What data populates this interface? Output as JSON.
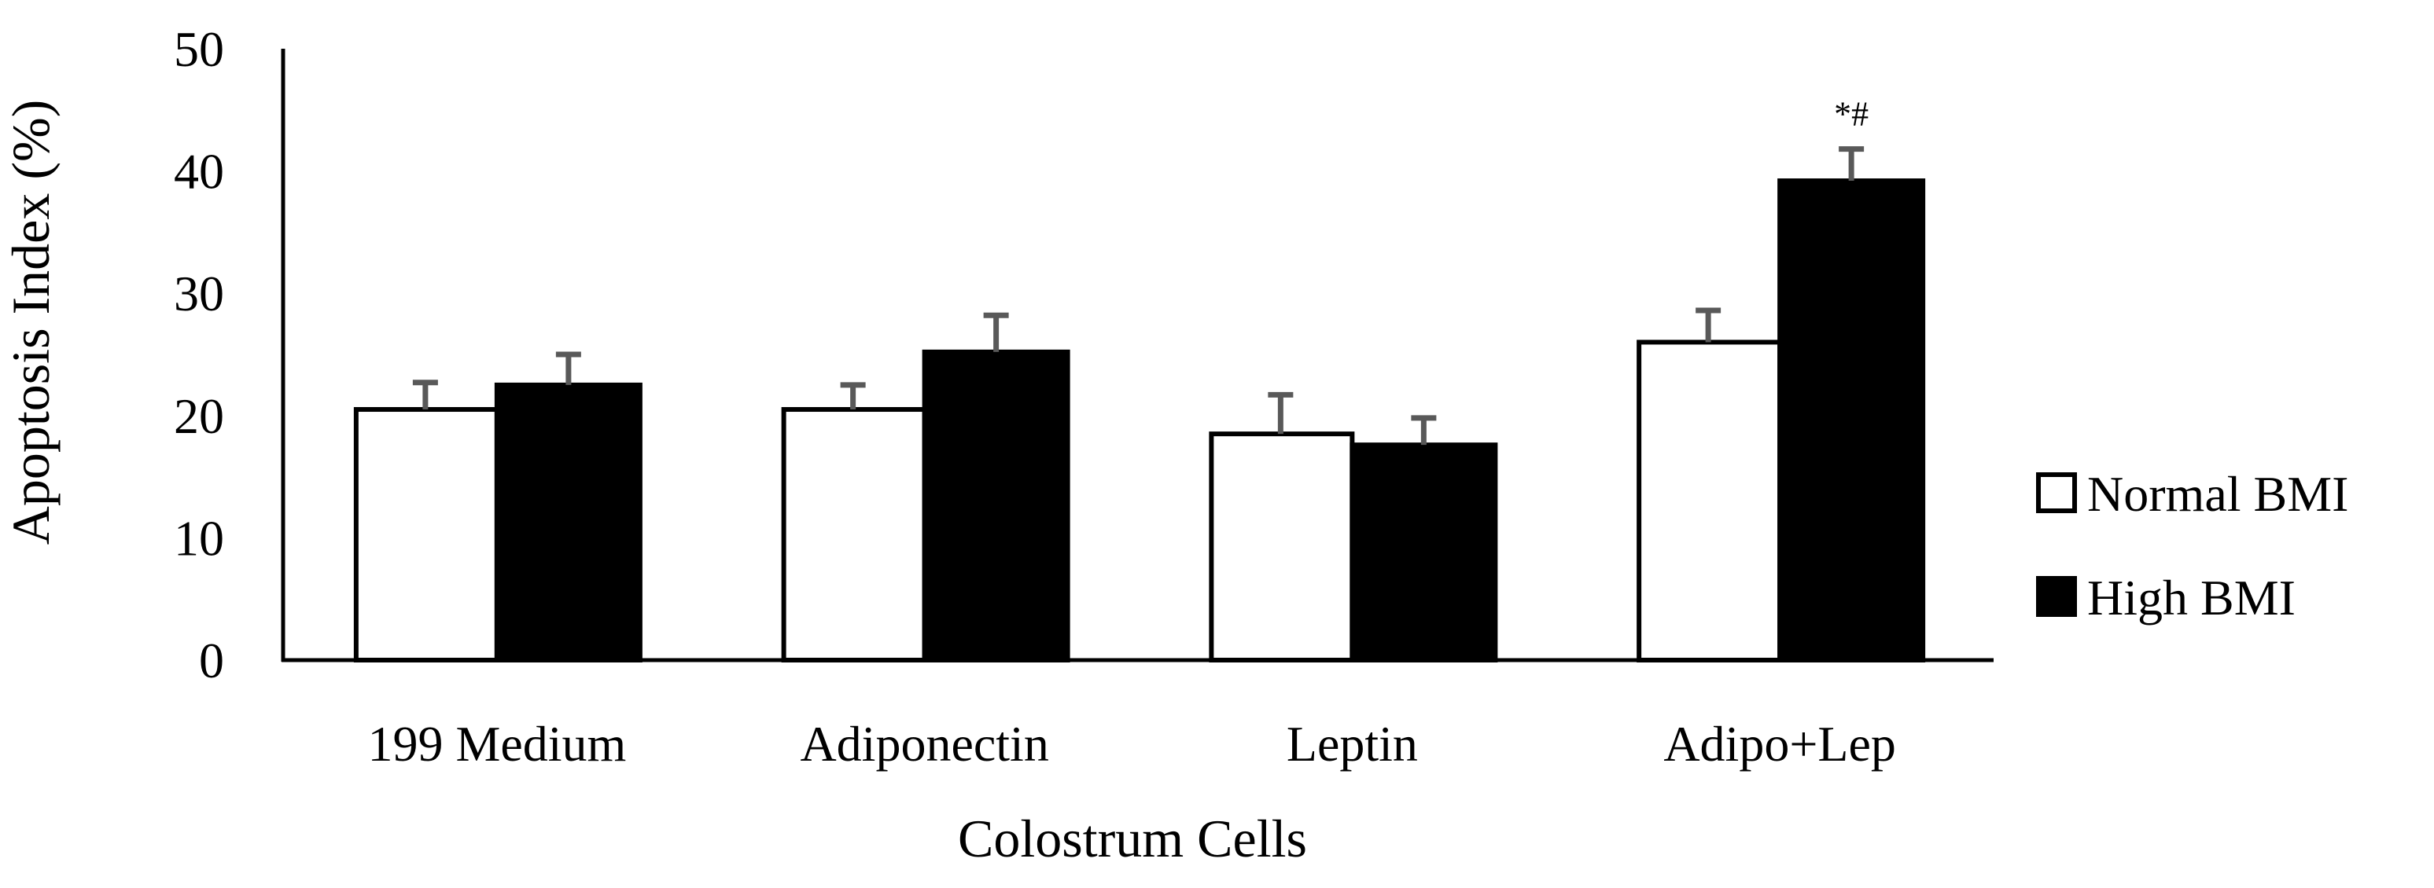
{
  "chart_data": {
    "type": "bar",
    "title": "",
    "xlabel": "Colostrum Cells",
    "ylabel": "Apoptosis Index (%)",
    "ylim": [
      0,
      50
    ],
    "yticks": [
      0,
      10,
      20,
      30,
      40,
      50
    ],
    "categories": [
      "199 Medium",
      "Adiponectin",
      "Leptin",
      "Adipo+Lep"
    ],
    "series": [
      {
        "name": "Normal BMI",
        "fill": "#ffffff",
        "stroke": "#000000",
        "values": [
          20.5,
          20.5,
          18.5,
          26.0
        ],
        "errors": [
          2.2,
          2.0,
          3.2,
          2.6
        ]
      },
      {
        "name": "High BMI",
        "fill": "#000000",
        "stroke": "#000000",
        "values": [
          22.5,
          25.2,
          17.6,
          39.2
        ],
        "errors": [
          2.5,
          3.0,
          2.2,
          2.6
        ]
      }
    ],
    "annotations": [
      {
        "category": "Adipo+Lep",
        "series": "High BMI",
        "text": "*#"
      }
    ],
    "legend_position": "right",
    "grid": false,
    "error_bar_color": "#595959"
  }
}
